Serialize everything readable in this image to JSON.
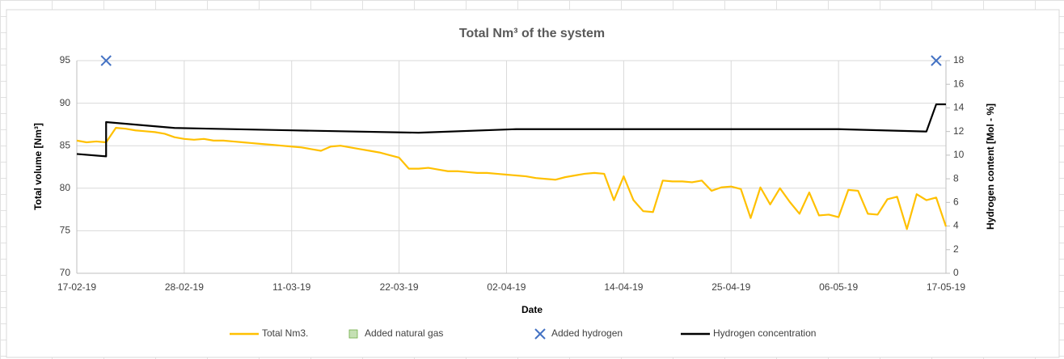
{
  "chart_data": {
    "type": "line",
    "title": "Total Nm³ of the system",
    "x_label": "Date",
    "y_label": "Total volume [Nm³]",
    "y2_label": "Hydrogen content [Mol - %]",
    "xlim": [
      "17-02-19",
      "17-05-19"
    ],
    "xticks": [
      "17-02-19",
      "28-02-19",
      "11-03-19",
      "22-03-19",
      "02-04-19",
      "14-04-19",
      "25-04-19",
      "06-05-19",
      "17-05-19"
    ],
    "ylim": [
      70,
      95
    ],
    "yticks": [
      70,
      75,
      80,
      85,
      90,
      95
    ],
    "y2lim": [
      0,
      18
    ],
    "y2ticks": [
      0,
      2,
      4,
      6,
      8,
      10,
      12,
      14,
      16,
      18
    ],
    "grid": true,
    "legend": "bottom",
    "series": [
      {
        "name": "Total Nm3.",
        "color": "#ffc000",
        "kind": "line",
        "axis": "y",
        "x": [
          "17-02-19",
          "18-02-19",
          "19-02-19",
          "20-02-19",
          "21-02-19",
          "22-02-19",
          "23-02-19",
          "24-02-19",
          "25-02-19",
          "26-02-19",
          "27-02-19",
          "28-02-19",
          "01-03-19",
          "02-03-19",
          "03-03-19",
          "04-03-19",
          "05-03-19",
          "06-03-19",
          "07-03-19",
          "08-03-19",
          "09-03-19",
          "10-03-19",
          "11-03-19",
          "12-03-19",
          "13-03-19",
          "14-03-19",
          "15-03-19",
          "16-03-19",
          "17-03-19",
          "18-03-19",
          "19-03-19",
          "20-03-19",
          "21-03-19",
          "22-03-19",
          "23-03-19",
          "24-03-19",
          "25-03-19",
          "26-03-19",
          "27-03-19",
          "28-03-19",
          "29-03-19",
          "30-03-19",
          "31-03-19",
          "01-04-19",
          "02-04-19",
          "03-04-19",
          "04-04-19",
          "05-04-19",
          "06-04-19",
          "07-04-19",
          "08-04-19",
          "09-04-19",
          "10-04-19",
          "11-04-19",
          "12-04-19",
          "13-04-19",
          "14-04-19",
          "15-04-19",
          "16-04-19",
          "17-04-19",
          "18-04-19",
          "19-04-19",
          "20-04-19",
          "21-04-19",
          "22-04-19",
          "23-04-19",
          "24-04-19",
          "25-04-19",
          "26-04-19",
          "27-04-19",
          "28-04-19",
          "29-04-19",
          "30-04-19",
          "01-05-19",
          "02-05-19",
          "03-05-19",
          "04-05-19",
          "05-05-19",
          "06-05-19",
          "07-05-19",
          "08-05-19",
          "09-05-19",
          "10-05-19",
          "11-05-19",
          "12-05-19",
          "13-05-19",
          "14-05-19",
          "15-05-19",
          "16-05-19",
          "17-05-19"
        ],
        "values": [
          85.6,
          85.4,
          85.5,
          85.4,
          87.1,
          87.0,
          86.8,
          86.7,
          86.6,
          86.4,
          86.0,
          85.8,
          85.7,
          85.8,
          85.6,
          85.6,
          85.5,
          85.4,
          85.3,
          85.2,
          85.1,
          85.0,
          84.9,
          84.8,
          84.6,
          84.4,
          84.9,
          85.0,
          84.8,
          84.6,
          84.4,
          84.2,
          83.9,
          83.6,
          82.3,
          82.3,
          82.4,
          82.2,
          82.0,
          82.0,
          81.9,
          81.8,
          81.8,
          81.7,
          81.6,
          81.5,
          81.4,
          81.2,
          81.1,
          81.0,
          81.3,
          81.5,
          81.7,
          81.8,
          81.7,
          78.6,
          81.4,
          78.6,
          77.3,
          77.2,
          80.9,
          80.8,
          80.8,
          80.7,
          80.9,
          79.7,
          80.1,
          80.2,
          79.9,
          76.5,
          80.1,
          78.1,
          80.0,
          78.4,
          77.0,
          79.5,
          76.8,
          76.9,
          76.6,
          79.8,
          79.7,
          77.0,
          76.9,
          78.7,
          79.0,
          75.2,
          79.3,
          78.6,
          78.9,
          75.5
        ]
      },
      {
        "name": "Added natural gas",
        "color": "#c5e0b4",
        "kind": "square",
        "axis": "y",
        "x": [],
        "values": []
      },
      {
        "name": "Added hydrogen",
        "color": "#4472c4",
        "kind": "cross",
        "axis": "y",
        "x": [
          "20-02-19",
          "16-05-19"
        ],
        "values": [
          95,
          95
        ]
      },
      {
        "name": "Hydrogen concentration",
        "color": "#000000",
        "kind": "line",
        "axis": "y2",
        "x": [
          "17-02-19",
          "20-02-19",
          "20-02-19",
          "27-02-19",
          "11-03-19",
          "24-03-19",
          "03-04-19",
          "06-05-19",
          "15-05-19",
          "16-05-19",
          "17-05-19"
        ],
        "values": [
          10.1,
          9.9,
          12.8,
          12.3,
          12.1,
          11.9,
          12.2,
          12.2,
          12.0,
          14.3,
          14.3
        ]
      }
    ]
  }
}
